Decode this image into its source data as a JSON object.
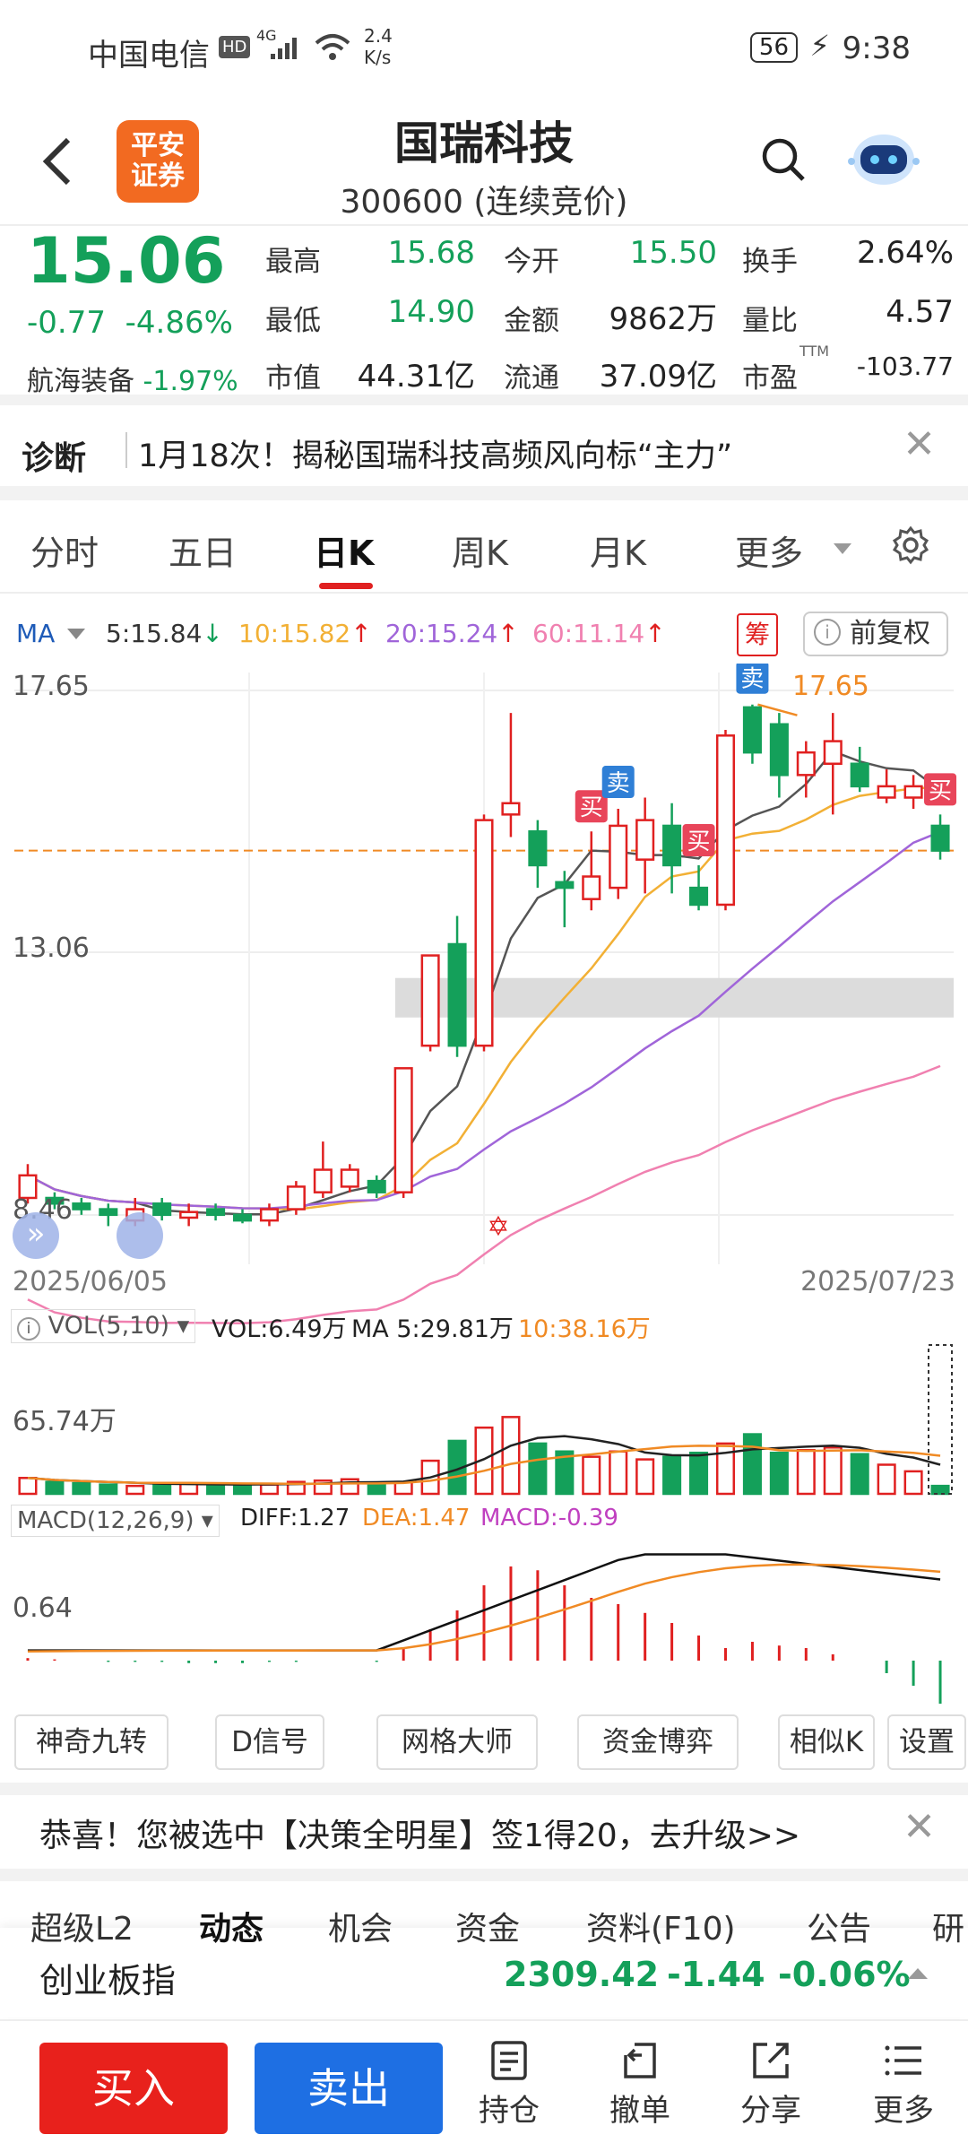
{
  "status_bar": {
    "carrier": "中国电信",
    "net_speed_value": "2.4",
    "net_speed_unit": "K/s",
    "battery": "56",
    "time": "9:38",
    "hd": "HD",
    "net_type": "4G"
  },
  "header": {
    "title": "国瑞科技",
    "subtitle": "300600 (连续竞价)",
    "broker_logo_line1": "平安",
    "broker_logo_line2": "证券"
  },
  "quote": {
    "price": "15.06",
    "change": "-0.77",
    "change_pct": "-4.86%",
    "sector_name": "航海装备",
    "sector_pct": "-1.97%",
    "fields": [
      {
        "label": "最高",
        "value": "15.68",
        "color": "green"
      },
      {
        "label": "今开",
        "value": "15.50",
        "color": "green"
      },
      {
        "label": "换手",
        "value": "2.64%",
        "color": "dark"
      },
      {
        "label": "最低",
        "value": "14.90",
        "color": "green"
      },
      {
        "label": "金额",
        "value": "9862万",
        "color": "dark"
      },
      {
        "label": "量比",
        "value": "4.57",
        "color": "dark"
      },
      {
        "label": "市值",
        "value": "44.31亿",
        "color": "dark"
      },
      {
        "label": "流通",
        "value": "37.09亿",
        "color": "dark"
      },
      {
        "label": "市盈",
        "value": "-103.77",
        "color": "dark"
      }
    ],
    "pe_tag": "TTM"
  },
  "diagnosis": {
    "label": "诊断",
    "text": "1月18次！揭秘国瑞科技高频风向标“主力”"
  },
  "tabs": [
    {
      "label": "分时",
      "active": false
    },
    {
      "label": "五日",
      "active": false
    },
    {
      "label": "日K",
      "active": true
    },
    {
      "label": "周K",
      "active": false
    },
    {
      "label": "月K",
      "active": false
    },
    {
      "label": "更多",
      "active": false
    }
  ],
  "ma_row": {
    "ma_label": "MA",
    "ma5": "5:15.84",
    "ma10": "10:15.82",
    "ma20": "20:15.24",
    "ma60": "60:11.14",
    "chou": "筹",
    "fuquan": "前复权"
  },
  "colors": {
    "up": "#e02020",
    "down": "#14a05a",
    "ma5": "#555555",
    "ma10": "#f2b035",
    "ma20": "#a065d9",
    "ma60": "#f080b0",
    "accent_orange": "#f08a24",
    "buy_tag": "#e8455a",
    "sell_tag": "#2f7fd6"
  },
  "chart_data": {
    "type": "candlestick",
    "y_max_label": "17.65",
    "y_mid_label": "13.06",
    "y_min_label": "8.46",
    "high_marker": "17.65",
    "x_start": "2025/06/05",
    "x_end": "2025/07/23",
    "price_range": [
      8.2,
      17.9
    ],
    "current_price_line": 15.06,
    "candles": [
      {
        "o": 8.9,
        "c": 9.3,
        "h": 9.5,
        "l": 8.8
      },
      {
        "o": 8.9,
        "c": 8.8,
        "h": 9.0,
        "l": 8.7
      },
      {
        "o": 8.8,
        "c": 8.7,
        "h": 8.9,
        "l": 8.6
      },
      {
        "o": 8.7,
        "c": 8.6,
        "h": 8.8,
        "l": 8.4
      },
      {
        "o": 8.5,
        "c": 8.7,
        "h": 8.9,
        "l": 8.4
      },
      {
        "o": 8.8,
        "c": 8.6,
        "h": 8.9,
        "l": 8.5
      },
      {
        "o": 8.55,
        "c": 8.65,
        "h": 8.8,
        "l": 8.4
      },
      {
        "o": 8.7,
        "c": 8.6,
        "h": 8.8,
        "l": 8.5
      },
      {
        "o": 8.6,
        "c": 8.5,
        "h": 8.7,
        "l": 8.45
      },
      {
        "o": 8.5,
        "c": 8.7,
        "h": 8.8,
        "l": 8.4
      },
      {
        "o": 8.7,
        "c": 9.1,
        "h": 9.2,
        "l": 8.6
      },
      {
        "o": 9.0,
        "c": 9.4,
        "h": 9.9,
        "l": 8.9
      },
      {
        "o": 9.1,
        "c": 9.4,
        "h": 9.5,
        "l": 9.0
      },
      {
        "o": 9.2,
        "c": 9.0,
        "h": 9.3,
        "l": 8.9
      },
      {
        "o": 9.0,
        "c": 11.2,
        "h": 11.2,
        "l": 8.9
      },
      {
        "o": 11.6,
        "c": 13.2,
        "h": 13.2,
        "l": 11.5
      },
      {
        "o": 13.4,
        "c": 11.6,
        "h": 13.9,
        "l": 11.4
      },
      {
        "o": 11.6,
        "c": 15.6,
        "h": 15.7,
        "l": 11.5
      },
      {
        "o": 15.7,
        "c": 15.9,
        "h": 17.5,
        "l": 15.3
      },
      {
        "o": 15.4,
        "c": 14.8,
        "h": 15.6,
        "l": 14.4
      },
      {
        "o": 14.5,
        "c": 14.4,
        "h": 14.7,
        "l": 13.7
      },
      {
        "o": 14.2,
        "c": 14.6,
        "h": 15.4,
        "l": 14.0
      },
      {
        "o": 14.4,
        "c": 15.5,
        "h": 15.8,
        "l": 14.2
      },
      {
        "o": 14.9,
        "c": 15.6,
        "h": 16.0,
        "l": 14.3
      },
      {
        "o": 15.5,
        "c": 14.8,
        "h": 15.9,
        "l": 14.3
      },
      {
        "o": 14.4,
        "c": 14.1,
        "h": 14.8,
        "l": 14.0
      },
      {
        "o": 14.1,
        "c": 17.1,
        "h": 17.2,
        "l": 14.0
      },
      {
        "o": 17.6,
        "c": 16.8,
        "h": 17.65,
        "l": 16.6
      },
      {
        "o": 17.3,
        "c": 16.4,
        "h": 17.5,
        "l": 16.0
      },
      {
        "o": 16.4,
        "c": 16.8,
        "h": 17.0,
        "l": 16.0
      },
      {
        "o": 16.6,
        "c": 17.0,
        "h": 17.5,
        "l": 15.7
      },
      {
        "o": 16.6,
        "c": 16.2,
        "h": 16.9,
        "l": 16.1
      },
      {
        "o": 16.0,
        "c": 16.2,
        "h": 16.5,
        "l": 15.9
      },
      {
        "o": 16.0,
        "c": 16.2,
        "h": 16.4,
        "l": 15.8
      },
      {
        "o": 15.5,
        "c": 15.06,
        "h": 15.7,
        "l": 14.9
      }
    ],
    "signals": [
      {
        "index": 21,
        "type": "买"
      },
      {
        "index": 22,
        "type": "卖"
      },
      {
        "index": 25,
        "type": "买"
      },
      {
        "index": 27,
        "type": "卖"
      },
      {
        "index": 34,
        "type": "买"
      }
    ],
    "gap_zone": [
      12.1,
      12.8
    ],
    "volume": {
      "label": "VOL(5,10)",
      "vol": "VOL:6.49万",
      "ma5": "MA 5:29.81万",
      "ma10": "10:38.16万",
      "max_label": "65.74万",
      "values": [
        12,
        9,
        8,
        7,
        6,
        8,
        8,
        7,
        6,
        7,
        9,
        10,
        11,
        7,
        9,
        25,
        40,
        50,
        58,
        38,
        32,
        28,
        32,
        26,
        28,
        31,
        38,
        45,
        31,
        33,
        35,
        30,
        22,
        17,
        6
      ]
    },
    "macd": {
      "label": "MACD(12,26,9)",
      "diff": "DIFF:1.27",
      "dea": "DEA:1.47",
      "macd": "MACD:-0.39",
      "y_label": "0.64",
      "hist": [
        0.02,
        0.01,
        0.0,
        -0.01,
        -0.01,
        -0.01,
        -0.02,
        -0.02,
        -0.02,
        -0.01,
        -0.01,
        0.0,
        0.0,
        -0.01,
        0.1,
        0.25,
        0.4,
        0.6,
        0.75,
        0.72,
        0.6,
        0.5,
        0.45,
        0.38,
        0.3,
        0.2,
        0.1,
        0.15,
        0.12,
        0.1,
        0.05,
        0.0,
        -0.1,
        -0.2,
        -0.39
      ]
    }
  },
  "indicator_buttons": [
    "神奇九转",
    "D信号",
    "网格大师",
    "资金博弈",
    "相似K",
    "设置"
  ],
  "promo": {
    "text": "恭喜！您被选中【决策全明星】签1得20，去升级>>"
  },
  "sub_tabs": [
    "超级L2",
    "动态",
    "机会",
    "资金",
    "资料(F10)",
    "公告",
    "研"
  ],
  "index_bar": {
    "name": "创业板指",
    "value": "2309.42",
    "change": "-1.44",
    "pct": "-0.06%"
  },
  "bottom_bar": {
    "buy": "买入",
    "sell": "卖出",
    "actions": [
      {
        "label": "持仓",
        "icon": "document-icon"
      },
      {
        "label": "撤单",
        "icon": "undo-icon"
      },
      {
        "label": "分享",
        "icon": "share-icon"
      },
      {
        "label": "更多",
        "icon": "menu-icon"
      }
    ]
  }
}
